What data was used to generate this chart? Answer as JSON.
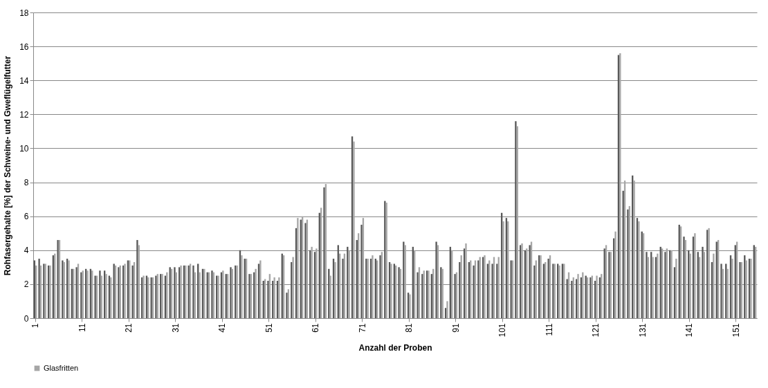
{
  "chart_data": {
    "type": "bar",
    "xlabel": "Anzahl der Proben",
    "ylabel": "Rohfasergehalte [%] der Schweine- und Gweflügelfutter",
    "categories": [
      "1",
      null,
      null,
      null,
      null,
      null,
      null,
      null,
      null,
      null,
      "11",
      null,
      null,
      null,
      null,
      null,
      null,
      null,
      null,
      null,
      "21",
      null,
      null,
      null,
      null,
      null,
      null,
      null,
      null,
      null,
      "31",
      null,
      null,
      null,
      null,
      null,
      null,
      null,
      null,
      null,
      "41",
      null,
      null,
      null,
      null,
      null,
      null,
      null,
      null,
      null,
      "51",
      null,
      null,
      null,
      null,
      null,
      null,
      null,
      null,
      null,
      "61",
      null,
      null,
      null,
      null,
      null,
      null,
      null,
      null,
      null,
      "71",
      null,
      null,
      null,
      null,
      null,
      null,
      null,
      null,
      null,
      "81",
      null,
      null,
      null,
      null,
      null,
      null,
      null,
      null,
      null,
      "91",
      null,
      null,
      null,
      null,
      null,
      null,
      null,
      null,
      null,
      "101",
      null,
      null,
      null,
      null,
      null,
      null,
      null,
      null,
      null,
      "111",
      null,
      null,
      null,
      null,
      null,
      null,
      null,
      null,
      null,
      "121",
      null,
      null,
      null,
      null,
      null,
      null,
      null,
      null,
      null,
      "131",
      null,
      null,
      null,
      null,
      null,
      null,
      null,
      null,
      null,
      "141",
      null,
      null,
      null,
      null,
      null,
      null,
      null,
      null,
      null,
      "151",
      null,
      null,
      null,
      null
    ],
    "series": [
      {
        "color": "#595959",
        "values": [
          3.4,
          3.5,
          3.2,
          3.1,
          3.7,
          4.6,
          3.4,
          3.5,
          2.9,
          3.0,
          2.7,
          2.9,
          2.9,
          2.5,
          2.8,
          2.8,
          2.5,
          3.2,
          3.0,
          3.1,
          3.4,
          3.1,
          4.6,
          2.4,
          2.5,
          2.4,
          2.5,
          2.6,
          2.5,
          3.0,
          3.0,
          3.0,
          3.1,
          3.1,
          3.1,
          3.2,
          2.9,
          2.7,
          2.8,
          2.5,
          2.7,
          2.6,
          3.0,
          3.1,
          4.0,
          3.5,
          2.6,
          2.7,
          3.2,
          2.2,
          2.2,
          2.2,
          2.2,
          3.8,
          1.5,
          3.3,
          5.3,
          5.8,
          5.6,
          4.0,
          3.9,
          6.2,
          7.7,
          2.9,
          3.5,
          4.3,
          3.5,
          4.2,
          10.7,
          4.6,
          5.5,
          3.5,
          3.5,
          3.5,
          3.7,
          6.9,
          3.3,
          3.2,
          3.0,
          4.5,
          1.5,
          4.2,
          2.7,
          2.6,
          2.8,
          2.6,
          4.5,
          3.0,
          0.6,
          4.2,
          2.6,
          3.3,
          4.1,
          3.3,
          3.1,
          3.4,
          3.6,
          3.2,
          3.2,
          3.2,
          6.2,
          5.9,
          3.4,
          11.6,
          4.3,
          4.0,
          4.3,
          3.1,
          3.7,
          3.2,
          3.5,
          3.2,
          3.2,
          3.2,
          2.3,
          2.2,
          2.3,
          2.4,
          2.5,
          2.4,
          2.2,
          2.4,
          4.1,
          3.9,
          4.7,
          15.5,
          7.5,
          6.4,
          8.4,
          5.9,
          5.1,
          3.9,
          3.9,
          3.6,
          4.2,
          3.9,
          4.0,
          3.0,
          5.5,
          4.8,
          4.0,
          4.8,
          3.9,
          4.2,
          5.2,
          3.3,
          4.5,
          3.2,
          3.2,
          3.7,
          4.3,
          3.3,
          3.7,
          3.5,
          4.3
        ]
      },
      {
        "name": "Glasfritten",
        "color": "#a6a6a6",
        "values": [
          3.1,
          3.1,
          3.2,
          3.1,
          3.8,
          4.6,
          3.3,
          3.4,
          2.9,
          3.2,
          2.8,
          2.8,
          2.8,
          2.5,
          2.5,
          2.6,
          2.4,
          3.1,
          3.1,
          3.2,
          3.4,
          3.3,
          4.3,
          2.5,
          2.4,
          2.4,
          2.6,
          2.6,
          2.7,
          2.9,
          2.7,
          3.1,
          3.1,
          3.2,
          2.7,
          2.7,
          2.9,
          2.7,
          2.7,
          2.5,
          2.8,
          2.6,
          2.9,
          3.1,
          3.7,
          3.5,
          2.6,
          2.9,
          3.4,
          2.3,
          2.6,
          2.4,
          2.4,
          3.7,
          1.7,
          3.6,
          5.9,
          6.0,
          5.8,
          4.2,
          4.1,
          6.5,
          7.9,
          2.5,
          3.3,
          3.8,
          3.8,
          4.0,
          10.4,
          5.0,
          5.9,
          3.5,
          3.7,
          3.4,
          3.9,
          6.8,
          3.2,
          3.1,
          2.9,
          4.3,
          1.4,
          4.0,
          3.0,
          2.8,
          2.8,
          2.9,
          4.3,
          2.9,
          1.0,
          4.0,
          2.7,
          3.7,
          4.4,
          3.4,
          3.4,
          3.6,
          3.7,
          3.4,
          3.6,
          3.6,
          5.7,
          5.7,
          3.4,
          11.3,
          4.4,
          4.1,
          4.5,
          3.4,
          3.7,
          3.3,
          3.7,
          3.2,
          3.1,
          3.2,
          2.7,
          2.4,
          2.6,
          2.7,
          2.4,
          2.5,
          2.5,
          2.6,
          4.3,
          3.9,
          5.1,
          15.6,
          8.1,
          6.6,
          8.1,
          5.7,
          5.0,
          3.6,
          3.6,
          3.8,
          4.1,
          4.1,
          4.0,
          3.5,
          5.4,
          4.6,
          3.8,
          5.0,
          3.6,
          3.9,
          5.3,
          3.8,
          4.6,
          2.9,
          2.9,
          3.5,
          4.5,
          3.3,
          3.4,
          3.5,
          4.2
        ]
      }
    ],
    "ylim": [
      0,
      18
    ],
    "yticks": [
      0,
      2,
      4,
      6,
      8,
      10,
      12,
      14,
      16,
      18
    ],
    "grid": "y",
    "legend": "bottom"
  }
}
